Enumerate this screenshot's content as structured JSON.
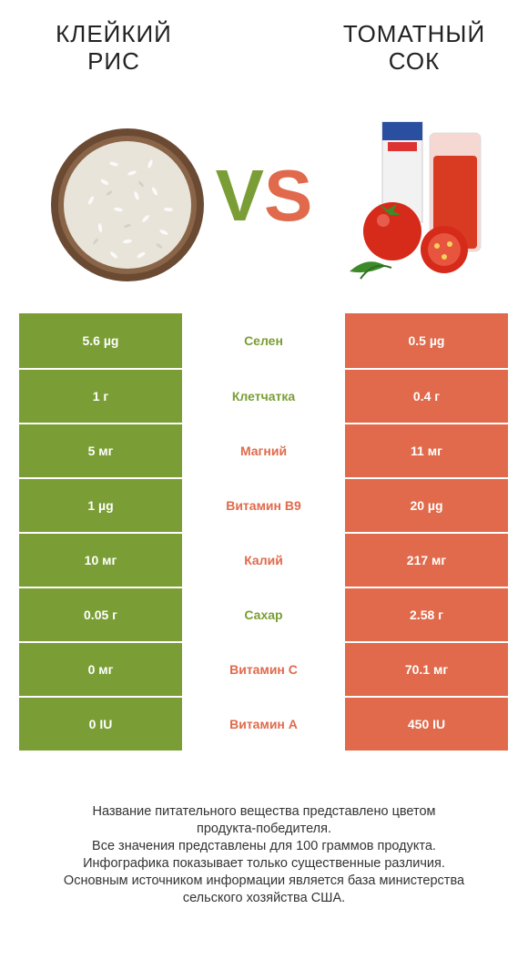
{
  "header": {
    "left_title_line1": "Клейкий",
    "left_title_line2": "рис",
    "right_title_line1": "Томатный",
    "right_title_line2": "сок",
    "vs_v": "V",
    "vs_s": "S"
  },
  "images": {
    "left": "sticky-rice-bowl",
    "right": "tomato-juice-glass"
  },
  "colors": {
    "left_product": "#7a9e35",
    "right_product": "#e06a4b"
  },
  "rows": [
    {
      "left": "5.6 µg",
      "name": "Селен",
      "right": "0.5 µg",
      "winner": "left"
    },
    {
      "left": "1 г",
      "name": "Клетчатка",
      "right": "0.4 г",
      "winner": "left"
    },
    {
      "left": "5 мг",
      "name": "Магний",
      "right": "11 мг",
      "winner": "right"
    },
    {
      "left": "1 µg",
      "name": "Витамин B9",
      "right": "20 µg",
      "winner": "right"
    },
    {
      "left": "10 мг",
      "name": "Калий",
      "right": "217 мг",
      "winner": "right"
    },
    {
      "left": "0.05 г",
      "name": "Сахар",
      "right": "2.58 г",
      "winner": "left"
    },
    {
      "left": "0 мг",
      "name": "Витамин C",
      "right": "70.1 мг",
      "winner": "right"
    },
    {
      "left": "0 IU",
      "name": "Витамин A",
      "right": "450 IU",
      "winner": "right"
    }
  ],
  "footer": {
    "line1": "Название питательного вещества представлено цветом",
    "line2": "продукта-победителя.",
    "line3": "Все значения представлены для 100 граммов продукта.",
    "line4": "Инфографика показывает только существенные различия.",
    "line5": "Основным источником информации является база министерства",
    "line6": "сельского хозяйства США."
  }
}
